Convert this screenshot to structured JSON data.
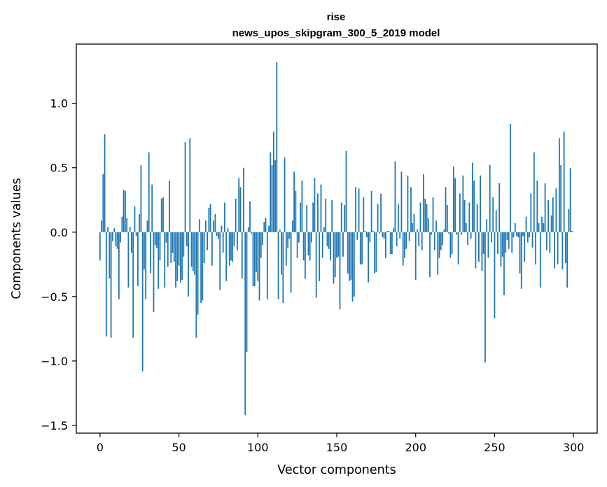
{
  "chart_data": {
    "type": "bar",
    "title": "rise",
    "subtitle": "news_upos_skipgram_300_5_2019 model",
    "xlabel": "Vector components",
    "ylabel": "Components values",
    "xlim": [
      -15,
      315
    ],
    "ylim": [
      -1.56,
      1.46
    ],
    "xticks": [
      0,
      50,
      100,
      150,
      200,
      250,
      300
    ],
    "xtick_labels": [
      "0",
      "50",
      "100",
      "150",
      "200",
      "250",
      "300"
    ],
    "yticks": [
      -1.5,
      -1.0,
      -0.5,
      0.0,
      0.5,
      1.0
    ],
    "ytick_labels": [
      "−1.5",
      "−1.0",
      "−0.5",
      "0.0",
      "0.5",
      "1.0"
    ],
    "bar_color": "#1f77b4",
    "values": [
      -0.22,
      0.09,
      0.45,
      0.76,
      -0.81,
      0.04,
      -0.36,
      -0.82,
      -0.07,
      0.03,
      -0.11,
      -0.13,
      -0.52,
      -0.08,
      0.12,
      0.33,
      0.32,
      0.11,
      -0.43,
      0.04,
      -0.16,
      -0.82,
      0.2,
      -0.03,
      -0.42,
      0.14,
      0.52,
      -1.08,
      -0.29,
      -0.52,
      0.09,
      0.62,
      -0.32,
      0.37,
      -0.62,
      -0.1,
      -0.12,
      -0.44,
      -0.22,
      0.26,
      0.27,
      -0.43,
      -0.08,
      -0.27,
      0.4,
      -0.24,
      -0.16,
      -0.23,
      -0.43,
      -0.38,
      -0.26,
      -0.39,
      -0.37,
      -0.19,
      0.7,
      -0.11,
      -0.5,
      0.73,
      -0.27,
      -0.3,
      -0.33,
      -0.82,
      -0.64,
      0.1,
      -0.55,
      -0.53,
      -0.24,
      0.09,
      -0.14,
      0.19,
      0.22,
      -0.26,
      0.09,
      0.14,
      -0.03,
      -0.05,
      -0.45,
      0.05,
      -0.16,
      0.23,
      -0.38,
      0.03,
      -0.26,
      -0.22,
      -0.23,
      -0.11,
      0.26,
      -0.14,
      0.42,
      0.35,
      -0.36,
      0.5,
      -1.42,
      -0.93,
      0.04,
      0.24,
      -0.01,
      -0.42,
      -0.42,
      -0.31,
      -0.38,
      -0.53,
      -0.2,
      -0.1,
      0.08,
      0.11,
      -0.52,
      0.05,
      0.62,
      0.52,
      0.78,
      0.56,
      1.32,
      -0.52,
      0.02,
      -0.33,
      -0.55,
      0.58,
      -0.26,
      -0.12,
      -0.05,
      -0.47,
      0.09,
      0.47,
      0.32,
      -0.2,
      -0.08,
      0.23,
      0.4,
      -0.22,
      -0.36,
      0.21,
      -0.18,
      -0.22,
      -0.08,
      0.23,
      0.42,
      -0.51,
      0.3,
      -0.38,
      0.37,
      -0.2,
      0.04,
      0.26,
      -0.11,
      -0.13,
      -0.22,
      0.25,
      -0.4,
      -0.35,
      -0.2,
      -0.19,
      -0.6,
      0.23,
      -0.19,
      0.21,
      0.63,
      -0.32,
      -0.38,
      -0.37,
      -0.54,
      -0.5,
      0.35,
      -0.06,
      0.34,
      -0.25,
      -0.25,
      0.27,
      0.01,
      -0.04,
      -0.39,
      -0.08,
      0.32,
      0.01,
      -0.32,
      -0.31,
      0.22,
      -0.01,
      0.3,
      -0.04,
      -0.05,
      -0.2,
      0.01,
      0.01,
      -0.17,
      -0.17,
      0.03,
      0.55,
      -0.11,
      0.22,
      -0.05,
      0.47,
      -0.26,
      -0.2,
      -0.13,
      0.44,
      -0.07,
      0.35,
      0.07,
      0.14,
      -0.37,
      0.02,
      -0.11,
      0.23,
      -0.14,
      0.45,
      0.26,
      0.22,
      0.11,
      -0.35,
      -0.02,
      0.27,
      -0.14,
      0.09,
      -0.33,
      -0.2,
      -0.14,
      -0.1,
      0.02,
      0.35,
      0.21,
      -0.01,
      -0.2,
      -0.17,
      0.51,
      0.42,
      -0.02,
      -0.25,
      0.3,
      -0.02,
      0.44,
      0.25,
      0.07,
      -0.1,
      0.23,
      -0.05,
      0.54,
      0.4,
      -0.28,
      0.22,
      -0.23,
      0.44,
      -0.3,
      -0.17,
      -1.01,
      0.1,
      -0.2,
      0.52,
      -0.08,
      0.27,
      -0.67,
      0.17,
      -0.17,
      0.38,
      -0.27,
      -0.19,
      -0.49,
      -0.16,
      -0.06,
      -0.13,
      0.84,
      -0.16,
      -0.04,
      0.07,
      -0.03,
      -0.04,
      -0.32,
      -0.44,
      -0.03,
      -0.23,
      0.12,
      -0.08,
      -0.04,
      0.3,
      -0.12,
      0.62,
      -0.25,
      0.4,
      0.07,
      -0.43,
      0.12,
      0.07,
      0.38,
      -0.14,
      0.25,
      -0.16,
      0.13,
      0.27,
      -0.28,
      0.34,
      -0.25,
      0.73,
      0.52,
      -0.29,
      0.78,
      -0.24,
      -0.43,
      0.18,
      0.5,
      0.01
    ]
  }
}
